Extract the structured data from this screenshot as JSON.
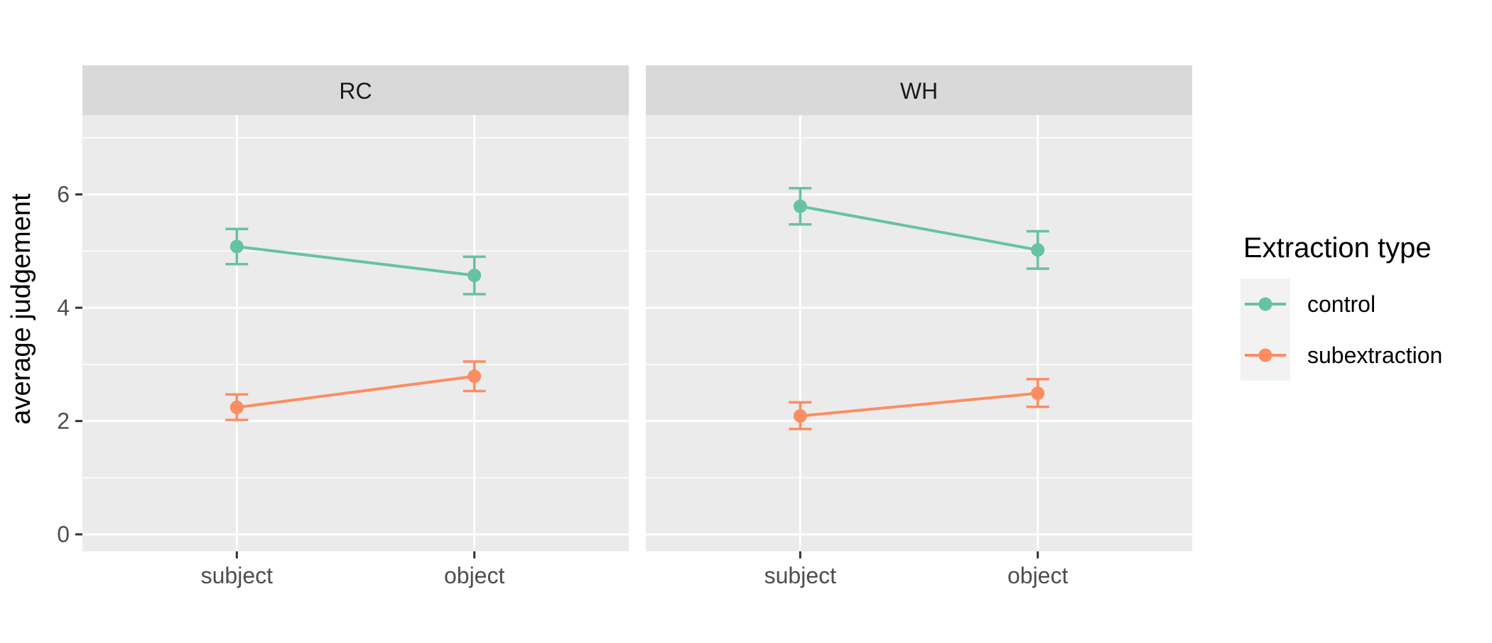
{
  "chart_data": {
    "type": "line",
    "ylabel": "average judgement",
    "xlabel": "",
    "categories": [
      "subject",
      "object"
    ],
    "ylim": [
      -0.3,
      7.4
    ],
    "yticks": [
      0,
      2,
      4,
      6
    ],
    "grid": true,
    "legend": {
      "title": "Extraction type",
      "placement": "right"
    },
    "series_styles": [
      {
        "name": "control",
        "color": "#66c2a5"
      },
      {
        "name": "subextraction",
        "color": "#fc8d62"
      }
    ],
    "facets": [
      {
        "label": "RC",
        "series": [
          {
            "name": "control",
            "values": [
              5.08,
              4.57
            ],
            "lower": [
              4.77,
              4.24
            ],
            "upper": [
              5.39,
              4.9
            ]
          },
          {
            "name": "subextraction",
            "values": [
              2.24,
              2.79
            ],
            "lower": [
              2.02,
              2.53
            ],
            "upper": [
              2.47,
              3.05
            ]
          }
        ]
      },
      {
        "label": "WH",
        "series": [
          {
            "name": "control",
            "values": [
              5.79,
              5.02
            ],
            "lower": [
              5.47,
              4.69
            ],
            "upper": [
              6.11,
              5.35
            ]
          },
          {
            "name": "subextraction",
            "values": [
              2.09,
              2.49
            ],
            "lower": [
              1.86,
              2.25
            ],
            "upper": [
              2.33,
              2.74
            ]
          }
        ]
      }
    ]
  }
}
